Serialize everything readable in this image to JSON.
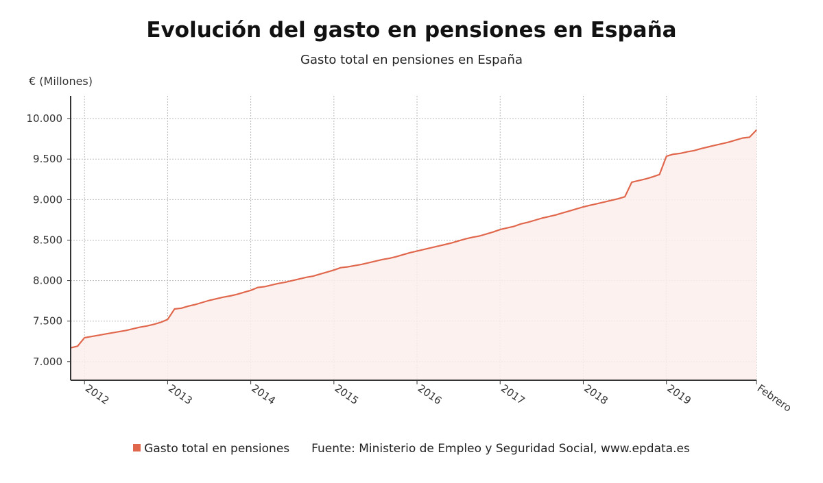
{
  "title": "Evolución del gasto en pensiones en España",
  "subtitle": "Gasto total en pensiones en España",
  "colors": {
    "line": "#e0674c",
    "fill": "#fdefec",
    "grid": "#b8b8b8",
    "axis": "#333333"
  },
  "legend": {
    "series_label": "Gasto total en pensiones"
  },
  "source": "Fuente: Ministerio de Empleo y Seguridad Social, www.epdata.es",
  "chart_data": {
    "type": "area",
    "title": "Evolución del gasto en pensiones en España",
    "subtitle": "Gasto total en pensiones en España",
    "ylabel": "€ (Millones)",
    "xlabel": "",
    "ylim": [
      6770,
      10280
    ],
    "xlim": [
      "2011-11",
      "2020-02"
    ],
    "grid": true,
    "legend_position": "bottom",
    "y_ticks": [
      7000,
      7500,
      8000,
      8500,
      9000,
      9500,
      10000
    ],
    "y_tick_labels": [
      "7.000",
      "7.500",
      "8.000",
      "8.500",
      "9.000",
      "9.500",
      "10.000"
    ],
    "x_ticks": [
      {
        "x": "2012-01",
        "label": "2012"
      },
      {
        "x": "2013-01",
        "label": "2013"
      },
      {
        "x": "2014-01",
        "label": "2014"
      },
      {
        "x": "2015-01",
        "label": "2015"
      },
      {
        "x": "2016-01",
        "label": "2016"
      },
      {
        "x": "2017-01",
        "label": "2017"
      },
      {
        "x": "2018-01",
        "label": "2018"
      },
      {
        "x": "2019-01",
        "label": "2019"
      },
      {
        "x": "2020-02",
        "label": "Febrero"
      }
    ],
    "series": [
      {
        "name": "Gasto total en pensiones",
        "points": [
          [
            "2011-11",
            7170
          ],
          [
            "2011-12",
            7190
          ],
          [
            "2012-01",
            7295
          ],
          [
            "2012-02",
            7310
          ],
          [
            "2012-03",
            7325
          ],
          [
            "2012-04",
            7340
          ],
          [
            "2012-05",
            7355
          ],
          [
            "2012-06",
            7370
          ],
          [
            "2012-07",
            7385
          ],
          [
            "2012-08",
            7405
          ],
          [
            "2012-09",
            7425
          ],
          [
            "2012-10",
            7440
          ],
          [
            "2012-11",
            7460
          ],
          [
            "2012-12",
            7485
          ],
          [
            "2013-01",
            7520
          ],
          [
            "2013-02",
            7650
          ],
          [
            "2013-03",
            7660
          ],
          [
            "2013-04",
            7685
          ],
          [
            "2013-05",
            7705
          ],
          [
            "2013-06",
            7730
          ],
          [
            "2013-07",
            7755
          ],
          [
            "2013-08",
            7775
          ],
          [
            "2013-09",
            7795
          ],
          [
            "2013-10",
            7810
          ],
          [
            "2013-11",
            7830
          ],
          [
            "2013-12",
            7855
          ],
          [
            "2014-01",
            7880
          ],
          [
            "2014-02",
            7915
          ],
          [
            "2014-03",
            7925
          ],
          [
            "2014-04",
            7945
          ],
          [
            "2014-05",
            7965
          ],
          [
            "2014-06",
            7980
          ],
          [
            "2014-07",
            8000
          ],
          [
            "2014-08",
            8020
          ],
          [
            "2014-09",
            8040
          ],
          [
            "2014-10",
            8055
          ],
          [
            "2014-11",
            8080
          ],
          [
            "2014-12",
            8105
          ],
          [
            "2015-01",
            8130
          ],
          [
            "2015-02",
            8160
          ],
          [
            "2015-03",
            8170
          ],
          [
            "2015-04",
            8185
          ],
          [
            "2015-05",
            8200
          ],
          [
            "2015-06",
            8220
          ],
          [
            "2015-07",
            8240
          ],
          [
            "2015-08",
            8260
          ],
          [
            "2015-09",
            8275
          ],
          [
            "2015-10",
            8295
          ],
          [
            "2015-11",
            8320
          ],
          [
            "2015-12",
            8345
          ],
          [
            "2016-01",
            8365
          ],
          [
            "2016-02",
            8385
          ],
          [
            "2016-03",
            8405
          ],
          [
            "2016-04",
            8425
          ],
          [
            "2016-05",
            8445
          ],
          [
            "2016-06",
            8465
          ],
          [
            "2016-07",
            8490
          ],
          [
            "2016-08",
            8515
          ],
          [
            "2016-09",
            8535
          ],
          [
            "2016-10",
            8550
          ],
          [
            "2016-11",
            8575
          ],
          [
            "2016-12",
            8600
          ],
          [
            "2017-01",
            8630
          ],
          [
            "2017-02",
            8650
          ],
          [
            "2017-03",
            8670
          ],
          [
            "2017-04",
            8700
          ],
          [
            "2017-05",
            8720
          ],
          [
            "2017-06",
            8745
          ],
          [
            "2017-07",
            8770
          ],
          [
            "2017-08",
            8790
          ],
          [
            "2017-09",
            8810
          ],
          [
            "2017-10",
            8835
          ],
          [
            "2017-11",
            8860
          ],
          [
            "2017-12",
            8885
          ],
          [
            "2018-01",
            8910
          ],
          [
            "2018-02",
            8930
          ],
          [
            "2018-03",
            8950
          ],
          [
            "2018-04",
            8970
          ],
          [
            "2018-05",
            8990
          ],
          [
            "2018-06",
            9010
          ],
          [
            "2018-07",
            9035
          ],
          [
            "2018-08",
            9215
          ],
          [
            "2018-09",
            9235
          ],
          [
            "2018-10",
            9255
          ],
          [
            "2018-11",
            9280
          ],
          [
            "2018-12",
            9310
          ],
          [
            "2019-01",
            9535
          ],
          [
            "2019-02",
            9560
          ],
          [
            "2019-03",
            9570
          ],
          [
            "2019-04",
            9590
          ],
          [
            "2019-05",
            9605
          ],
          [
            "2019-06",
            9630
          ],
          [
            "2019-07",
            9650
          ],
          [
            "2019-08",
            9670
          ],
          [
            "2019-09",
            9690
          ],
          [
            "2019-10",
            9710
          ],
          [
            "2019-11",
            9735
          ],
          [
            "2019-12",
            9760
          ],
          [
            "2020-01",
            9770
          ],
          [
            "2020-02",
            9860
          ]
        ]
      }
    ]
  }
}
